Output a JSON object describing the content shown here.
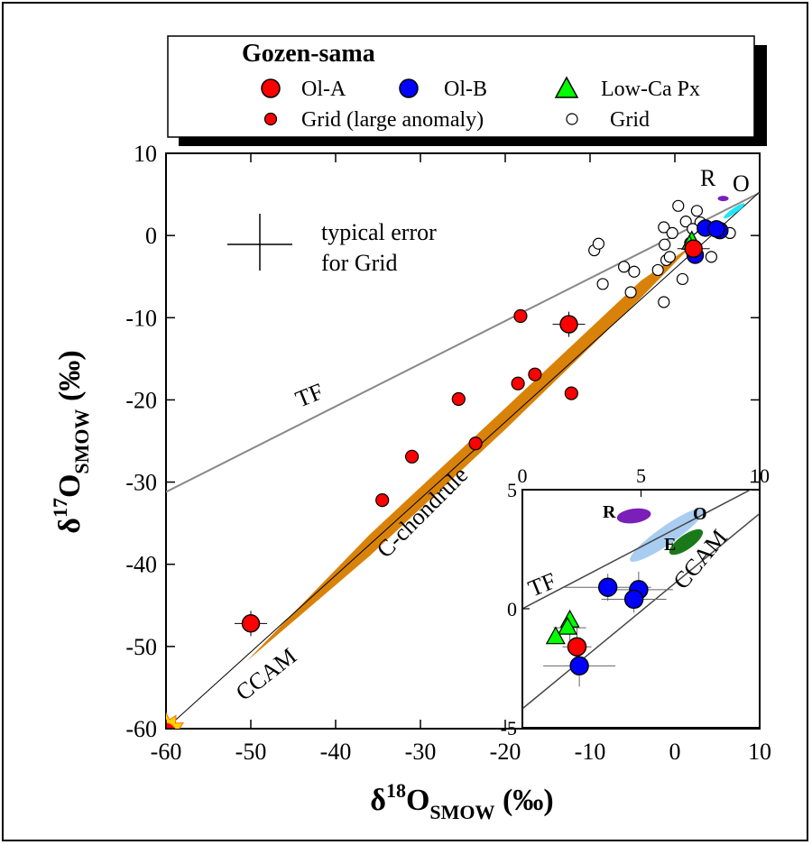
{
  "chart_data": [
    {
      "type": "scatter",
      "title": "",
      "xlabel": "δ18O_SMOW (‰)",
      "ylabel": "δ17O_SMOW (‰)",
      "xlabel_parts": {
        "delta": "δ",
        "sup": "18",
        "o": "O",
        "sub": "SMOW",
        "unit": " (‰)"
      },
      "ylabel_parts": {
        "delta": "δ",
        "sup": "17",
        "o": "O",
        "sub": "SMOW",
        "unit": " (‰)"
      },
      "xlim": [
        -60,
        10
      ],
      "ylim": [
        -60,
        10
      ],
      "xticks": [
        -60,
        -50,
        -40,
        -30,
        -20,
        -10,
        0,
        10
      ],
      "yticks": [
        10,
        0,
        -10,
        -20,
        -30,
        -40,
        -50,
        -60
      ],
      "legend": {
        "title": "Gozen-sama",
        "entries": [
          {
            "label": "Ol-A",
            "marker": "circle-large",
            "color": "#ff0000"
          },
          {
            "label": "Ol-B",
            "marker": "circle-large",
            "color": "#0000ff"
          },
          {
            "label": "Low-Ca Px",
            "marker": "triangle",
            "color": "#00ff00"
          },
          {
            "label": "Grid (large anomaly)",
            "marker": "circle-small",
            "color": "#ff0000"
          },
          {
            "label": "Grid",
            "marker": "circle-open",
            "color": "#ffffff"
          }
        ]
      },
      "lines": [
        {
          "name": "TF",
          "slope": 0.52,
          "intercept": 0,
          "color": "#888888"
        },
        {
          "name": "CCAM",
          "slope": 0.94,
          "intercept": -4.0,
          "color": "#000000"
        }
      ],
      "band_label": "C-chondrule",
      "band_color": "#d9820a",
      "annotations": [
        "typical error",
        "for Grid",
        "R",
        "O"
      ],
      "series": [
        {
          "name": "Ol-A",
          "points": [
            [
              -50,
              -47.2
            ],
            [
              -12.5,
              -10.8
            ],
            [
              2.2,
              -1.6
            ]
          ]
        },
        {
          "name": "Ol-B",
          "points": [
            [
              3.6,
              0.9
            ],
            [
              5.3,
              0.6
            ],
            [
              4.9,
              0.8
            ],
            [
              2.4,
              -2.4
            ]
          ]
        },
        {
          "name": "Low-Ca Px",
          "points": [
            [
              2.0,
              -0.5
            ],
            [
              1.7,
              -1.0
            ]
          ]
        },
        {
          "name": "Grid (large anomaly)",
          "points": [
            [
              -34.5,
              -32.2
            ],
            [
              -31,
              -26.9
            ],
            [
              -25.5,
              -19.9
            ],
            [
              -23.5,
              -25.3
            ],
            [
              -18.5,
              -18.0
            ],
            [
              -18.2,
              -9.8
            ],
            [
              -16.5,
              -16.9
            ],
            [
              -12.2,
              -19.2
            ],
            [
              -60,
              -60.5
            ]
          ]
        },
        {
          "name": "Grid",
          "points": [
            [
              -9.5,
              -1.8
            ],
            [
              -9,
              -1.0
            ],
            [
              -8.5,
              -5.9
            ],
            [
              -6,
              -3.8
            ],
            [
              -4.8,
              -4.4
            ],
            [
              -5.2,
              -6.9
            ],
            [
              -2,
              -4.2
            ],
            [
              -1,
              -3.0
            ],
            [
              -0.6,
              -2.6
            ],
            [
              -1.3,
              -8.1
            ],
            [
              -1.3,
              1.0
            ],
            [
              -1.2,
              -1.1
            ],
            [
              0.4,
              3.6
            ],
            [
              0.9,
              -5.3
            ],
            [
              1.3,
              1.7
            ],
            [
              1.8,
              -0.9
            ],
            [
              2.6,
              3.0
            ],
            [
              3.0,
              1.6
            ],
            [
              4.3,
              -2.6
            ],
            [
              5.4,
              0.4
            ],
            [
              6.5,
              0.3
            ],
            [
              -0.3,
              0.3
            ],
            [
              2.1,
              0.8
            ]
          ]
        }
      ],
      "ovals": [
        {
          "name": "R",
          "color": "#7a1fb8"
        },
        {
          "name": "O",
          "color": "#22e5f5"
        }
      ],
      "inset": {
        "xlim": [
          0,
          10
        ],
        "ylim": [
          -5,
          5
        ],
        "xticks": [
          0,
          5,
          10
        ],
        "yticks": [
          5,
          0,
          -5
        ],
        "line_labels": [
          "TF",
          "CCAM"
        ],
        "oval_labels": [
          "R",
          "O",
          "E"
        ],
        "series": [
          {
            "name": "Ol-A",
            "points": [
              [
                2.3,
                -1.6
              ]
            ]
          },
          {
            "name": "Ol-B",
            "points": [
              [
                2.4,
                -2.4
              ],
              [
                3.6,
                0.9
              ],
              [
                4.9,
                0.8
              ],
              [
                4.7,
                0.4
              ]
            ]
          },
          {
            "name": "Low-Ca Px",
            "points": [
              [
                2.0,
                -0.5
              ],
              [
                1.9,
                -0.8
              ],
              [
                1.4,
                -1.2
              ]
            ]
          }
        ]
      }
    }
  ]
}
